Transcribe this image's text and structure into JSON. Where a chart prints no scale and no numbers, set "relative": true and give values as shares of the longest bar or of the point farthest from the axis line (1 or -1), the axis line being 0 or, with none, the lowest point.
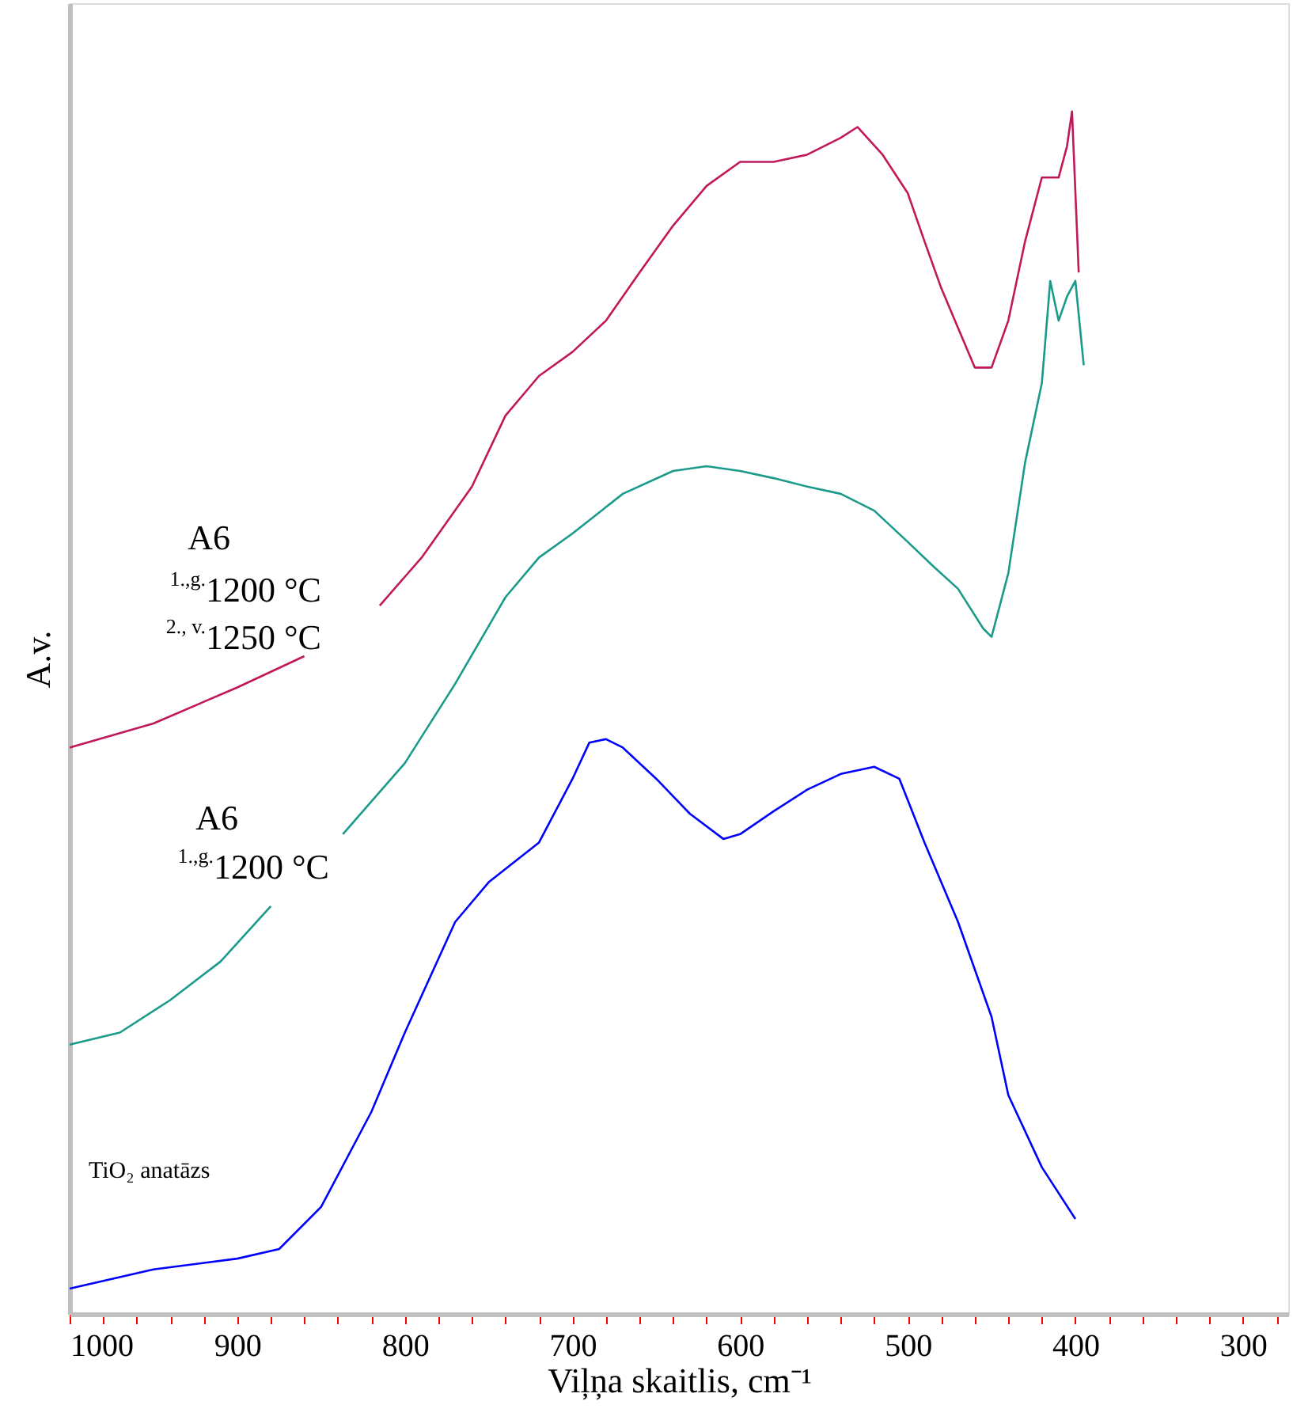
{
  "chart_data": {
    "type": "line",
    "relative": true,
    "xlabel": "Viļņa skaitlis, cm⁻¹",
    "ylabel": "A.v.",
    "grid": false,
    "marker": "none",
    "line_style": "solid",
    "tick_labels": "x",
    "xlim": [
      1000,
      273
    ],
    "xticks": [
      1000,
      {
        "value": 980,
        "label": null
      },
      {
        "value": 960,
        "label": null
      },
      {
        "value": 940,
        "label": null
      },
      {
        "value": 920,
        "label": null
      },
      900,
      {
        "value": 880,
        "label": null
      },
      {
        "value": 860,
        "label": null
      },
      {
        "value": 840,
        "label": null
      },
      {
        "value": 820,
        "label": null
      },
      800,
      {
        "value": 780,
        "label": null
      },
      {
        "value": 760,
        "label": null
      },
      {
        "value": 740,
        "label": null
      },
      {
        "value": 720,
        "label": null
      },
      700,
      {
        "value": 680,
        "label": null
      },
      {
        "value": 660,
        "label": null
      },
      {
        "value": 640,
        "label": null
      },
      {
        "value": 620,
        "label": null
      },
      600,
      {
        "value": 580,
        "label": null
      },
      {
        "value": 560,
        "label": null
      },
      {
        "value": 540,
        "label": null
      },
      {
        "value": 520,
        "label": null
      },
      500,
      {
        "value": 480,
        "label": null
      },
      {
        "value": 460,
        "label": null
      },
      {
        "value": 440,
        "label": null
      },
      {
        "value": 420,
        "label": null
      },
      400,
      {
        "value": 380,
        "label": null
      },
      {
        "value": 360,
        "label": null
      },
      {
        "value": 340,
        "label": null
      },
      {
        "value": 320,
        "label": null
      },
      300,
      {
        "value": 280,
        "label": null
      }
    ],
    "annotations": [
      "A6",
      "$^{1.,g.}$1200 °C",
      "$^{2., v.}$1250 °C",
      "A6",
      "$^{1.,g.}$1200 °C",
      "TiO₂ anatāzs"
    ],
    "series": [
      {
        "color": "#c0185a",
        "x": [
          1000,
          950,
          900,
          860,
          835,
          815,
          790,
          760,
          740,
          720,
          700,
          680,
          660,
          640,
          620,
          600,
          580,
          560,
          540,
          530,
          515,
          500,
          490,
          480,
          470,
          460,
          450,
          440,
          430,
          420,
          410,
          405,
          402,
          398
        ],
        "values": [
          0.471,
          0.491,
          0.521,
          0.547,
          null,
          0.589,
          0.629,
          0.688,
          0.747,
          0.78,
          0.8,
          0.826,
          0.866,
          0.905,
          0.938,
          0.958,
          0.958,
          0.964,
          0.978,
          0.987,
          0.964,
          0.932,
          0.892,
          0.853,
          0.82,
          0.787,
          0.787,
          0.826,
          0.892,
          0.945,
          0.945,
          0.971,
          1.0,
          0.866
        ]
      },
      {
        "color": "#1a9a8a",
        "x": [
          1000,
          970,
          940,
          910,
          880,
          860,
          837,
          800,
          770,
          740,
          720,
          700,
          670,
          640,
          620,
          600,
          580,
          560,
          540,
          520,
          500,
          485,
          470,
          455,
          450,
          440,
          430,
          420,
          415,
          410,
          405,
          400,
          395
        ],
        "values": [
          0.224,
          0.234,
          0.261,
          0.293,
          0.339,
          null,
          0.399,
          0.458,
          0.524,
          0.596,
          0.629,
          0.649,
          0.682,
          0.701,
          0.705,
          0.701,
          0.695,
          0.688,
          0.682,
          0.668,
          0.642,
          0.622,
          0.603,
          0.57,
          0.563,
          0.616,
          0.708,
          0.774,
          0.859,
          0.826,
          0.846,
          0.859,
          0.789
        ]
      },
      {
        "color": "#0000ff",
        "x": [
          1000,
          950,
          900,
          875,
          850,
          820,
          800,
          770,
          750,
          720,
          700,
          690,
          680,
          670,
          650,
          630,
          610,
          600,
          580,
          560,
          540,
          520,
          505,
          490,
          470,
          450,
          440,
          420,
          400
        ],
        "values": [
          0.021,
          0.037,
          0.046,
          0.054,
          0.089,
          0.168,
          0.234,
          0.326,
          0.359,
          0.392,
          0.445,
          0.475,
          0.478,
          0.471,
          0.445,
          0.416,
          0.395,
          0.399,
          0.418,
          0.436,
          0.449,
          0.455,
          0.445,
          0.392,
          0.326,
          0.247,
          0.182,
          0.122,
          0.079
        ]
      }
    ]
  }
}
